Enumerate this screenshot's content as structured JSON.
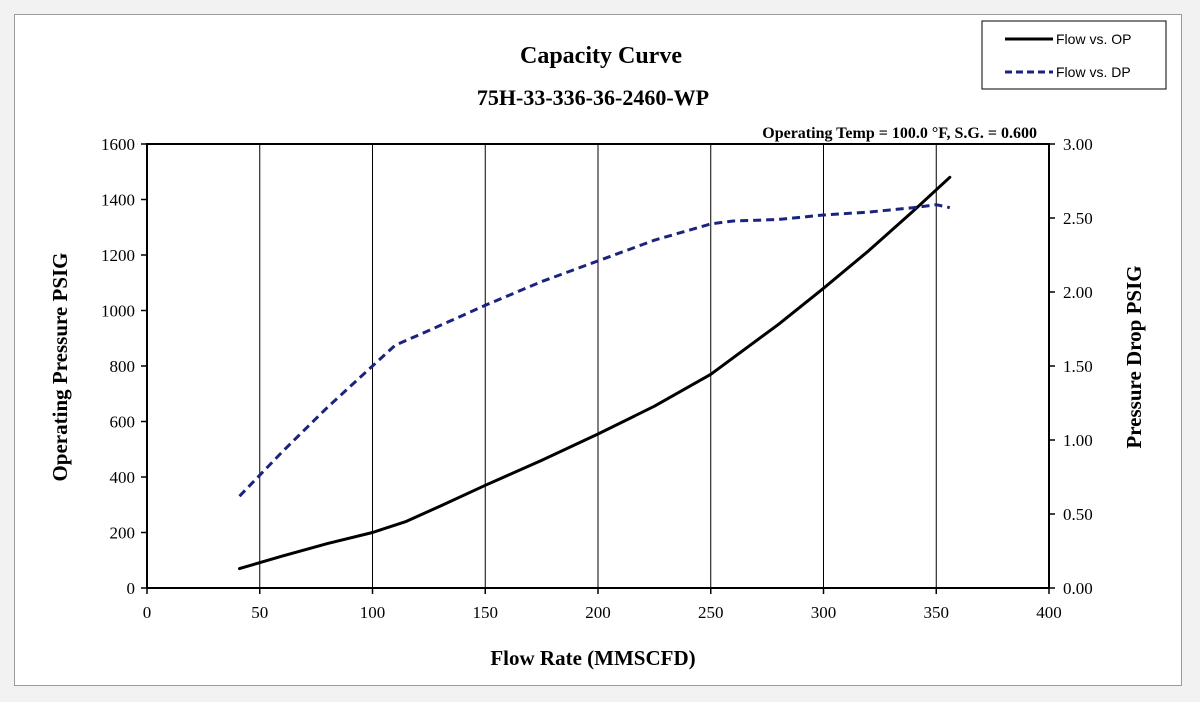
{
  "chart_data": {
    "type": "line",
    "title": "Capacity Curve",
    "subtitle": "75H-33-336-36-2460-WP",
    "annotation": "Operating Temp =  100.0 °F,  S.G. = 0.600",
    "xlabel": "Flow Rate (MMSCFD)",
    "ylabel": "Operating Pressure PSIG",
    "y2label": "Pressure Drop PSIG",
    "xlim": [
      0,
      400
    ],
    "ylim": [
      0,
      1600
    ],
    "y2lim": [
      0,
      3
    ],
    "x_ticks": [
      0,
      50,
      100,
      150,
      200,
      250,
      300,
      350,
      400
    ],
    "x_tick_labels": [
      "0",
      "50",
      "100",
      "150",
      "200",
      "250",
      "300",
      "350",
      "400"
    ],
    "y_ticks": [
      0,
      200,
      400,
      600,
      800,
      1000,
      1200,
      1400,
      1600
    ],
    "y_tick_labels": [
      "0",
      "200",
      "400",
      "600",
      "800",
      "1000",
      "1200",
      "1400",
      "1600"
    ],
    "y2_ticks": [
      0,
      0.5,
      1,
      1.5,
      2,
      2.5,
      3
    ],
    "y2_tick_labels": [
      "0.00",
      "0.50",
      "1.00",
      "1.50",
      "2.00",
      "2.50",
      "3.00"
    ],
    "grid": "vertical",
    "legend_position": "top-right",
    "series": [
      {
        "name": "Flow vs. OP",
        "axis": "left",
        "color": "#000000",
        "style": "solid",
        "x": [
          41,
          60,
          80,
          100,
          115,
          130,
          150,
          175,
          200,
          225,
          250,
          260,
          280,
          300,
          320,
          340,
          356
        ],
        "y": [
          70,
          115,
          160,
          200,
          240,
          295,
          370,
          460,
          555,
          655,
          770,
          830,
          950,
          1080,
          1215,
          1360,
          1480
        ]
      },
      {
        "name": "Flow vs. DP",
        "axis": "right",
        "color": "#1a237e",
        "style": "dashed",
        "x": [
          41,
          60,
          80,
          100,
          110,
          125,
          150,
          175,
          200,
          225,
          250,
          260,
          280,
          300,
          320,
          340,
          350,
          356
        ],
        "y": [
          0.62,
          0.92,
          1.22,
          1.5,
          1.64,
          1.74,
          1.91,
          2.07,
          2.21,
          2.35,
          2.46,
          2.48,
          2.49,
          2.52,
          2.54,
          2.57,
          2.59,
          2.57
        ]
      }
    ]
  }
}
